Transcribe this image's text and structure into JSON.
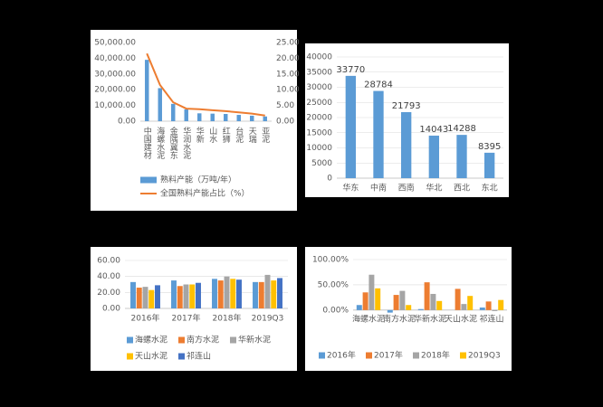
{
  "chart_data": [
    {
      "type": "combo",
      "categories": [
        "中国建材",
        "海螺水泥",
        "金隅冀东",
        "华润水泥",
        "华新",
        "山水",
        "红狮",
        "台泥",
        "天瑞",
        "亚泥"
      ],
      "series": [
        {
          "name": "熟料产能（万吨/年）",
          "type": "bar",
          "color": "#5b9bd5",
          "values": [
            39000,
            21000,
            11000,
            7500,
            5000,
            4800,
            4600,
            4000,
            3500,
            3000
          ]
        },
        {
          "name": "全国熟料产能占比（%）",
          "type": "line",
          "axis": "y2",
          "color": "#ed7d31",
          "values": [
            21.5,
            11.5,
            6,
            4,
            3.8,
            3.5,
            3.2,
            2.8,
            2.4,
            1.8
          ]
        }
      ],
      "ylim": [
        0,
        50000
      ],
      "yticks": [
        {
          "value": 0,
          "label": "0.00"
        },
        {
          "value": 10000,
          "label": "10,000.00"
        },
        {
          "value": 20000,
          "label": "20,000.00"
        },
        {
          "value": 30000,
          "label": "30,000.00"
        },
        {
          "value": 40000,
          "label": "40,000.00"
        },
        {
          "value": 50000,
          "label": "50,000.00"
        }
      ],
      "y2lim": [
        0,
        25
      ],
      "y2ticks": [
        {
          "value": 0,
          "label": "0.00"
        },
        {
          "value": 5,
          "label": "5.00"
        },
        {
          "value": 10,
          "label": "10.00"
        },
        {
          "value": 15,
          "label": "15.00"
        },
        {
          "value": 20,
          "label": "20.00"
        },
        {
          "value": 25,
          "label": "25.00"
        }
      ],
      "grid": false
    },
    {
      "type": "bar",
      "categories": [
        "华东",
        "中南",
        "西南",
        "华北",
        "西北",
        "东北"
      ],
      "values": [
        33770,
        28784,
        21793,
        14043,
        14288,
        8395
      ],
      "color": "#5b9bd5",
      "ylim": [
        0,
        40000
      ],
      "yticks": [
        0,
        5000,
        10000,
        15000,
        20000,
        25000,
        30000,
        35000,
        40000
      ],
      "grid": true
    },
    {
      "type": "bar",
      "categories": [
        "2016年",
        "2017年",
        "2018年",
        "2019Q3"
      ],
      "series": [
        {
          "name": "海螺水泥",
          "color": "#5b9bd5",
          "values": [
            33,
            35,
            37,
            33
          ]
        },
        {
          "name": "南方水泥",
          "color": "#ed7d31",
          "values": [
            26,
            28,
            35,
            33
          ]
        },
        {
          "name": "华新水泥",
          "color": "#a5a5a5",
          "values": [
            27,
            30,
            40,
            42
          ]
        },
        {
          "name": "天山水泥",
          "color": "#ffc000",
          "values": [
            23,
            30,
            37,
            35
          ]
        },
        {
          "name": "祁连山",
          "color": "#4472c4",
          "values": [
            29,
            32,
            36,
            38
          ]
        }
      ],
      "ylim": [
        0,
        60
      ],
      "yticks": [
        {
          "value": 0,
          "label": "0.00"
        },
        {
          "value": 20,
          "label": "20.00"
        },
        {
          "value": 40,
          "label": "40.00"
        },
        {
          "value": 60,
          "label": "60.00"
        }
      ],
      "grid": true
    },
    {
      "type": "bar",
      "categories": [
        "海螺水泥",
        "南方水泥",
        "华新水泥",
        "天山水泥",
        "祁连山"
      ],
      "series": [
        {
          "name": "2016年",
          "color": "#5b9bd5",
          "values": [
            10,
            -5,
            2,
            0,
            5
          ]
        },
        {
          "name": "2017年",
          "color": "#ed7d31",
          "values": [
            35,
            30,
            55,
            42,
            17
          ]
        },
        {
          "name": "2018年",
          "color": "#a5a5a5",
          "values": [
            70,
            38,
            32,
            12,
            -2
          ]
        },
        {
          "name": "2019Q3",
          "color": "#ffc000",
          "values": [
            43,
            10,
            18,
            28,
            20
          ]
        }
      ],
      "ylim": [
        -20,
        100
      ],
      "yticks": [
        {
          "value": 0,
          "label": "0.00%"
        },
        {
          "value": 50,
          "label": "50.00%"
        },
        {
          "value": 100,
          "label": "100.00%"
        }
      ],
      "grid": true
    }
  ]
}
